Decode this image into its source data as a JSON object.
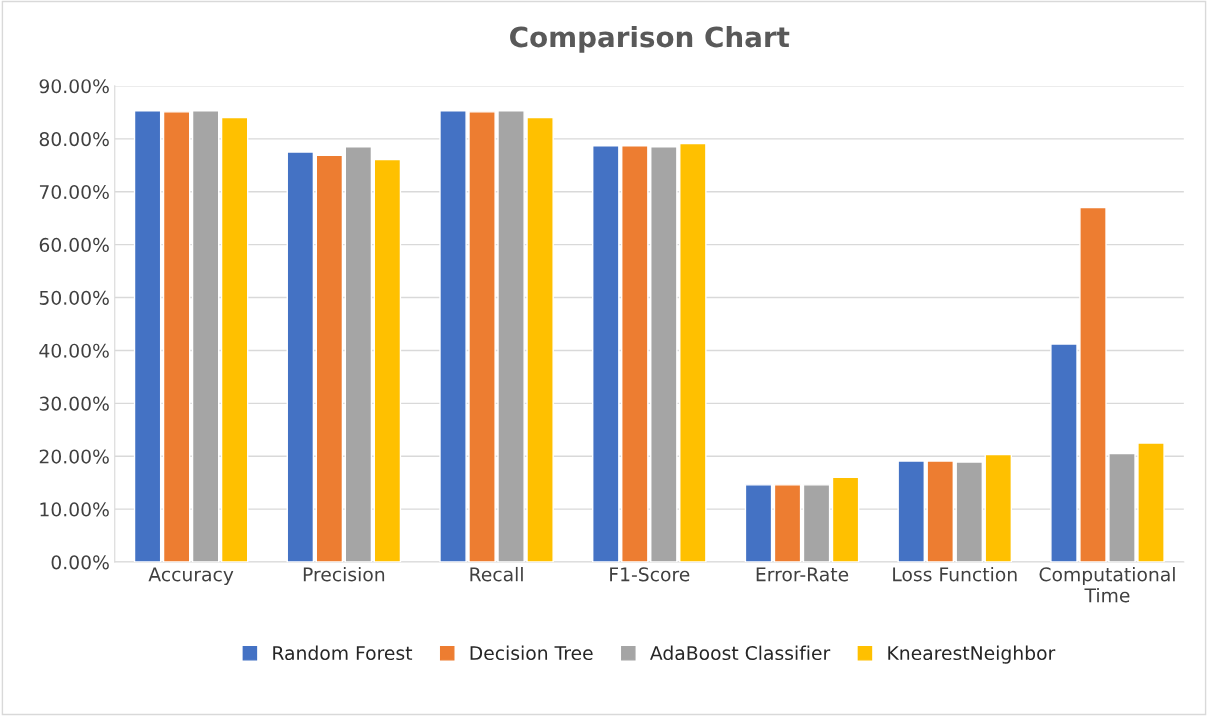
{
  "chart_data": {
    "type": "bar",
    "title": "Comparison Chart",
    "categories": [
      "Accuracy",
      "Precision",
      "Recall",
      "F1-Score",
      "Error-Rate",
      "Loss Function",
      "Computational\nTime"
    ],
    "series": [
      {
        "name": "Random Forest",
        "color": "#4472c4",
        "values": [
          85.3,
          77.5,
          85.3,
          78.7,
          14.6,
          19.1,
          41.2
        ]
      },
      {
        "name": "Decision Tree",
        "color": "#ed7d31",
        "values": [
          85.1,
          76.9,
          85.1,
          78.7,
          14.6,
          19.1,
          67.0
        ]
      },
      {
        "name": "AdaBoost Classifier",
        "color": "#a5a5a5",
        "values": [
          85.3,
          78.5,
          85.3,
          78.5,
          14.6,
          18.9,
          20.5
        ]
      },
      {
        "name": "KnearestNeighbor",
        "color": "#ffc000",
        "values": [
          84.0,
          76.1,
          84.0,
          79.1,
          16.0,
          20.3,
          22.5
        ]
      }
    ],
    "ylim": [
      0,
      90
    ],
    "yticks": [
      {
        "value": 0,
        "label": "0.00%"
      },
      {
        "value": 10,
        "label": "10.00%"
      },
      {
        "value": 20,
        "label": "20.00%"
      },
      {
        "value": 30,
        "label": "30.00%"
      },
      {
        "value": 40,
        "label": "40.00%"
      },
      {
        "value": 50,
        "label": "50.00%"
      },
      {
        "value": 60,
        "label": "60.00%"
      },
      {
        "value": 70,
        "label": "70.00%"
      },
      {
        "value": 80,
        "label": "80.00%"
      },
      {
        "value": 90,
        "label": "90.00%"
      }
    ],
    "grid": "y",
    "legend": "bottom"
  }
}
